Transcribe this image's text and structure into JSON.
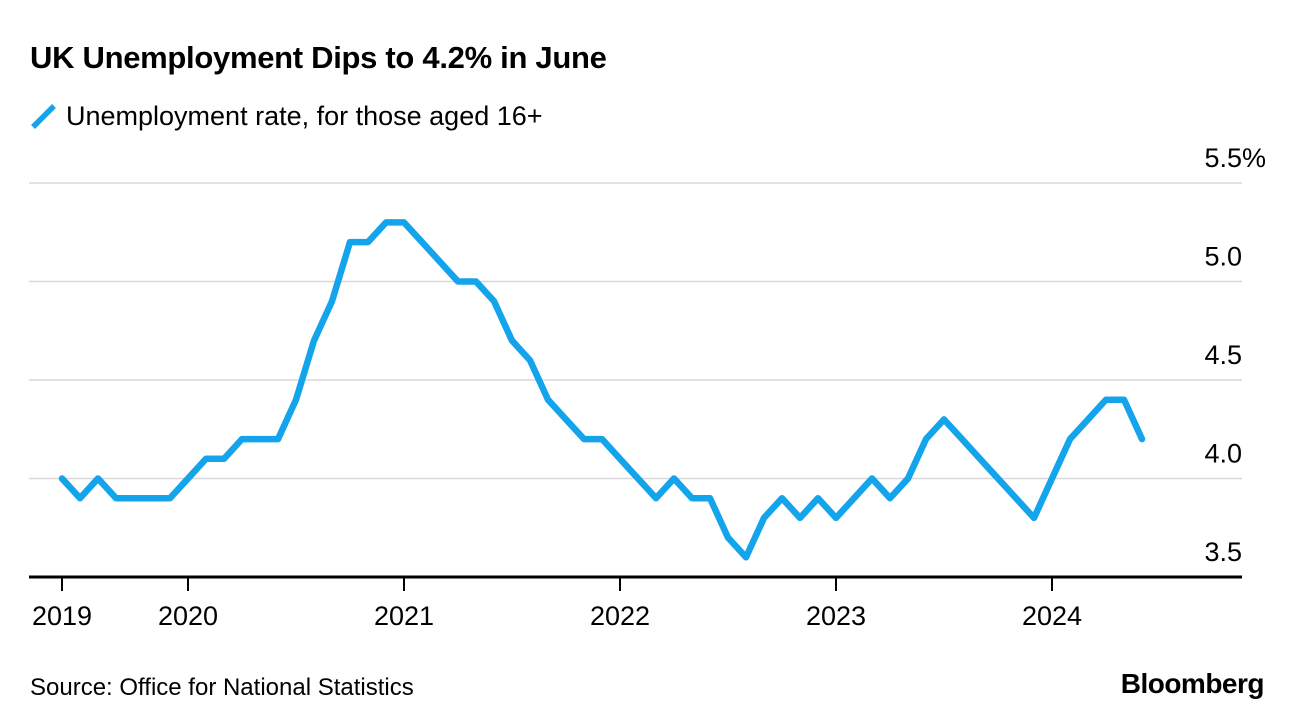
{
  "source": "Source: Office for National Statistics",
  "brand": "Bloomberg",
  "colors": {
    "line": "#14a4ec",
    "grid": "#d8d8d8",
    "axis": "#000000",
    "text": "#000000",
    "background": "#ffffff"
  },
  "chart_data": {
    "type": "line",
    "title": "UK Unemployment Dips to 4.2% in June",
    "legend_label": "Unemployment rate, for those aged 16+",
    "legend_position": "top-left",
    "grid": "horizontal",
    "ylim": [
      3.5,
      5.7
    ],
    "x": [
      "2019-06",
      "2019-07",
      "2019-08",
      "2019-09",
      "2019-10",
      "2019-11",
      "2019-12",
      "2020-01",
      "2020-02",
      "2020-03",
      "2020-04",
      "2020-05",
      "2020-06",
      "2020-07",
      "2020-08",
      "2020-09",
      "2020-10",
      "2020-11",
      "2020-12",
      "2021-01",
      "2021-02",
      "2021-03",
      "2021-04",
      "2021-05",
      "2021-06",
      "2021-07",
      "2021-08",
      "2021-09",
      "2021-10",
      "2021-11",
      "2021-12",
      "2022-01",
      "2022-02",
      "2022-03",
      "2022-04",
      "2022-05",
      "2022-06",
      "2022-07",
      "2022-08",
      "2022-09",
      "2022-10",
      "2022-11",
      "2022-12",
      "2023-01",
      "2023-02",
      "2023-03",
      "2023-04",
      "2023-05",
      "2023-06",
      "2023-07",
      "2023-08",
      "2023-09",
      "2023-10",
      "2023-11",
      "2023-12",
      "2024-01",
      "2024-02",
      "2024-03",
      "2024-04",
      "2024-05",
      "2024-06"
    ],
    "series": [
      {
        "name": "Unemployment rate, for those aged 16+",
        "unit": "%",
        "values": [
          4.0,
          3.9,
          4.0,
          3.9,
          3.9,
          3.9,
          3.9,
          4.0,
          4.1,
          4.1,
          4.2,
          4.2,
          4.2,
          4.4,
          4.7,
          4.9,
          5.2,
          5.2,
          5.3,
          5.3,
          5.2,
          5.1,
          5.0,
          5.0,
          4.9,
          4.7,
          4.6,
          4.4,
          4.3,
          4.2,
          4.2,
          4.1,
          4.0,
          3.9,
          4.0,
          3.9,
          3.9,
          3.7,
          3.6,
          3.8,
          3.9,
          3.8,
          3.9,
          3.8,
          3.9,
          4.0,
          3.9,
          4.0,
          4.2,
          4.3,
          4.2,
          4.1,
          4.0,
          3.9,
          3.8,
          4.0,
          4.2,
          4.3,
          4.4,
          4.4,
          4.2
        ]
      }
    ],
    "yticks": [
      {
        "value": 5.5,
        "label": "5.5",
        "suffix": "%"
      },
      {
        "value": 5.0,
        "label": "5.0"
      },
      {
        "value": 4.5,
        "label": "4.5"
      },
      {
        "value": 4.0,
        "label": "4.0"
      },
      {
        "value": 3.5,
        "label": "3.5"
      }
    ],
    "xticks": [
      {
        "label": "2019",
        "month_index": 0
      },
      {
        "label": "2020",
        "month_index": 7
      },
      {
        "label": "2021",
        "month_index": 19
      },
      {
        "label": "2022",
        "month_index": 31
      },
      {
        "label": "2023",
        "month_index": 43
      },
      {
        "label": "2024",
        "month_index": 55
      }
    ]
  }
}
